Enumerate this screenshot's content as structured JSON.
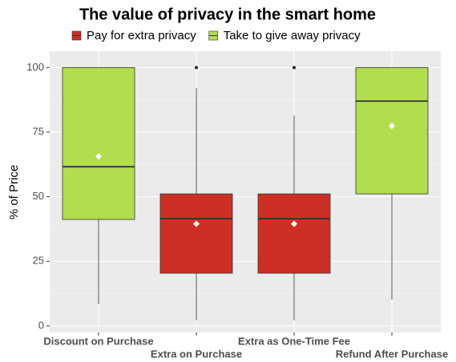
{
  "chart_data": {
    "type": "box",
    "title": "The value of privacy in the smart home",
    "y_label": "% of Price",
    "categories": [
      "Discount on Purchase",
      "Extra on Purchase",
      "Extra as One-Time Fee",
      "Refund After Purchase"
    ],
    "series": [
      {
        "name": "Pay for extra privacy",
        "color": "#cc3025",
        "boxes": [
          null,
          {
            "min": 2.2,
            "q1": 20.4,
            "median": 41.5,
            "q3": 51.1,
            "max": 92,
            "mean": 39.5,
            "outliers": [
              100
            ]
          },
          {
            "min": 2.2,
            "q1": 20.4,
            "median": 41.5,
            "q3": 51.1,
            "max": 81.4,
            "mean": 39.5,
            "outliers": [
              100
            ]
          },
          null
        ]
      },
      {
        "name": "Take to give away privacy",
        "color": "#b2dd4f",
        "boxes": [
          {
            "min": 8.4,
            "q1": 41.2,
            "median": 61.6,
            "q3": 100,
            "max": 100,
            "mean": 65.6,
            "outliers": []
          },
          null,
          null,
          {
            "min": 10.2,
            "q1": 51.1,
            "median": 87,
            "q3": 100,
            "max": 100,
            "mean": 77.4,
            "outliers": []
          }
        ]
      }
    ],
    "ylim": [
      -2.5,
      106.3
    ],
    "yticks": [
      0,
      25,
      50,
      75,
      100
    ],
    "grid": true,
    "legend": "top"
  }
}
